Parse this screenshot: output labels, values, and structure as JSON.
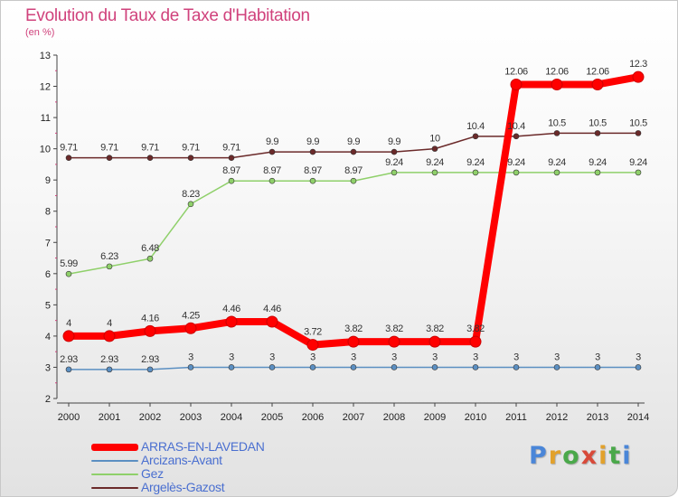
{
  "header": {
    "title": "Evolution du Taux de Taxe d'Habitation",
    "unit": "(en %)"
  },
  "logo": {
    "text": "Proxiti",
    "letter_colors": [
      "#4a86d8",
      "#e2a12b",
      "#4aa84a",
      "#d84a3a",
      "#e2a12b",
      "#4aa84a",
      "#4a86d8"
    ]
  },
  "chart_data": {
    "type": "line",
    "title": "Evolution du Taux de Taxe d'Habitation",
    "subtitle": "(en %)",
    "xlabel": "",
    "ylabel": "",
    "x": [
      "2000",
      "2001",
      "2002",
      "2003",
      "2004",
      "2005",
      "2006",
      "2007",
      "2008",
      "2009",
      "2010",
      "2011",
      "2012",
      "2013",
      "2014"
    ],
    "ylim": [
      2,
      13
    ],
    "yticks": [
      "2",
      "3",
      "4",
      "5",
      "6",
      "7",
      "8",
      "9",
      "10",
      "11",
      "12",
      "13"
    ],
    "grid": false,
    "legend_position": "bottom-left",
    "series": [
      {
        "name": "ARRAS-EN-LAVEDAN",
        "color": "#ff0000",
        "emphasis": true,
        "values": [
          4,
          4,
          4.16,
          4.25,
          4.46,
          4.46,
          3.72,
          3.82,
          3.82,
          3.82,
          3.82,
          12.06,
          12.06,
          12.06,
          12.3
        ],
        "labels": [
          "4",
          "4",
          "4.16",
          "4.25",
          "4.46",
          "4.46",
          "3.72",
          "3.82",
          "3.82",
          "3.82",
          "3.82",
          "12.06",
          "12.06",
          "12.06",
          "12.3"
        ]
      },
      {
        "name": "Arcizans-Avant",
        "color": "#5b8fc2",
        "values": [
          2.93,
          2.93,
          2.93,
          3,
          3,
          3,
          3,
          3,
          3,
          3,
          3,
          3,
          3,
          3,
          3
        ],
        "labels": [
          "2.93",
          "2.93",
          "2.93",
          "3",
          "3",
          "3",
          "3",
          "3",
          "3",
          "3",
          "3",
          "3",
          "3",
          "3",
          "3"
        ]
      },
      {
        "name": "Gez",
        "color": "#8fd06a",
        "values": [
          5.99,
          6.23,
          6.48,
          8.23,
          8.97,
          8.97,
          8.97,
          8.97,
          9.24,
          9.24,
          9.24,
          9.24,
          9.24,
          9.24,
          9.24
        ],
        "labels": [
          "5.99",
          "6.23",
          "6.48",
          "8.23",
          "8.97",
          "8.97",
          "8.97",
          "8.97",
          "9.24",
          "9.24",
          "9.24",
          "9.24",
          "9.24",
          "9.24",
          "9.24"
        ]
      },
      {
        "name": "Argelès-Gazost",
        "color": "#6b2a2a",
        "values": [
          9.71,
          9.71,
          9.71,
          9.71,
          9.71,
          9.9,
          9.9,
          9.9,
          9.9,
          10,
          10.4,
          10.4,
          10.5,
          10.5,
          10.5
        ],
        "labels": [
          "9.71",
          "9.71",
          "9.71",
          "9.71",
          "9.71",
          "9.9",
          "9.9",
          "9.9",
          "9.9",
          "10",
          "10.4",
          "10.4",
          "10.5",
          "10.5",
          "10.5"
        ]
      }
    ]
  }
}
